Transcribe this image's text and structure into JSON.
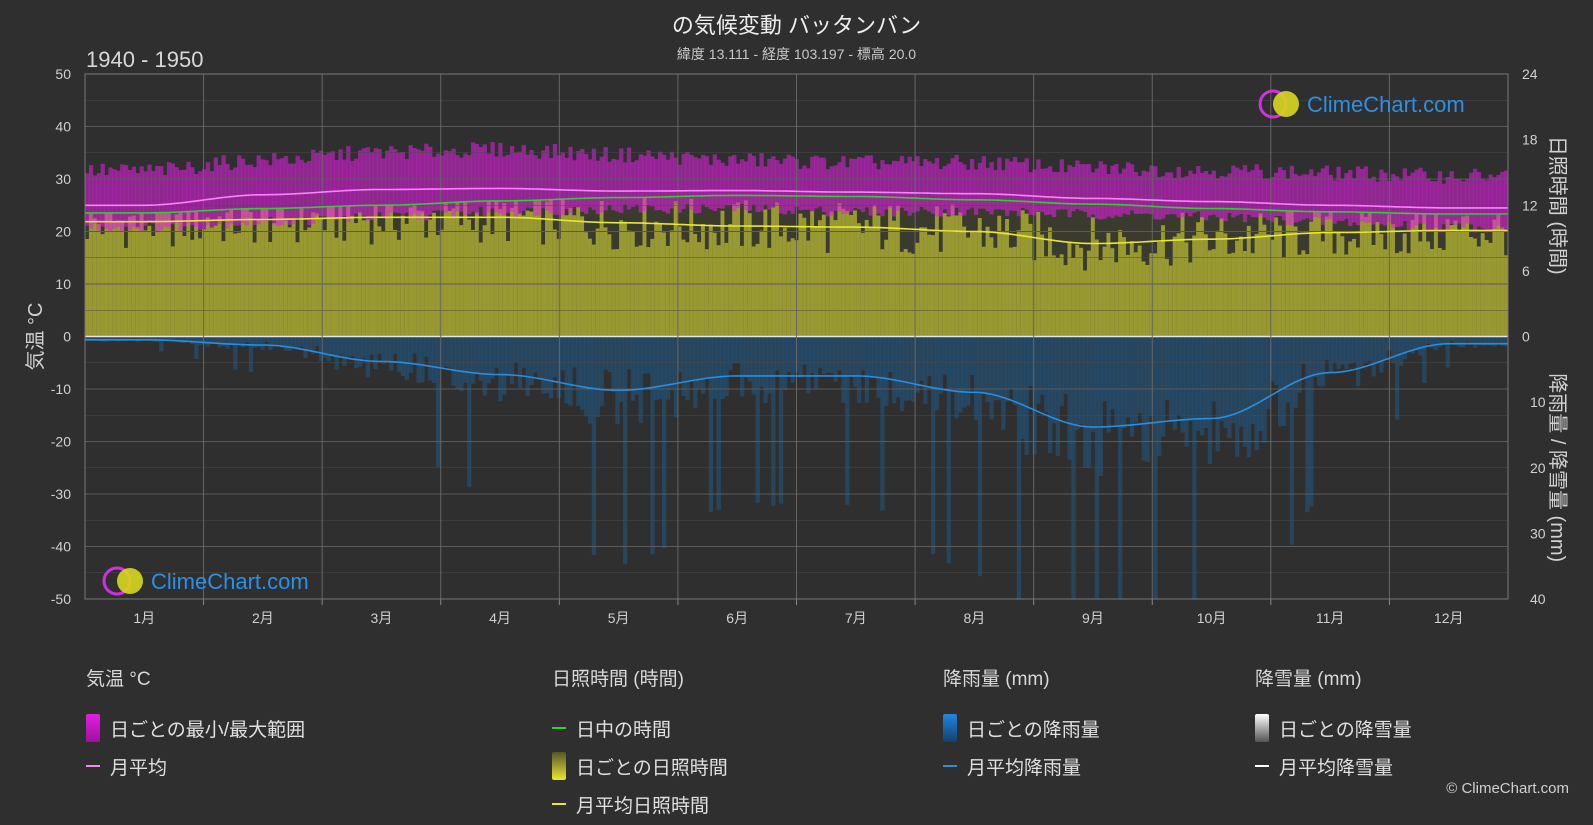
{
  "header": {
    "title": "の気候変動 バッタンバン",
    "subtitle": "緯度 13.111 - 経度 103.197 - 標高 20.0",
    "period": "1940 - 1950"
  },
  "watermark": {
    "brand": "ClimeChart.com"
  },
  "copyright": "© ClimeChart.com",
  "colors": {
    "temp_range": "#e020e0",
    "temp_mean": "#ff80ff",
    "daylight": "#33cc33",
    "sunshine_fill": "#aaaa33",
    "sunshine_mean": "#e8e830",
    "rain_bar": "#1a6fb5",
    "rain_mean": "#2a8ee0",
    "snow_mean": "#ffffff"
  },
  "chart_data": {
    "type": "line",
    "categories": [
      "1月",
      "2月",
      "3月",
      "4月",
      "5月",
      "6月",
      "7月",
      "8月",
      "9月",
      "10月",
      "11月",
      "12月"
    ],
    "left_axis": {
      "label": "気温 °C",
      "ylim": [
        -50,
        50
      ],
      "ticks": [
        "50",
        "40",
        "30",
        "20",
        "10",
        "0",
        "-10",
        "-20",
        "-30",
        "-40",
        "-50"
      ]
    },
    "right_axis_upper": {
      "label": "日照時間 (時間)",
      "ylim": [
        0,
        24
      ],
      "ticks": [
        "24",
        "18",
        "12",
        "6",
        "0"
      ]
    },
    "right_axis_lower": {
      "label": "降雨量 / 降雪量 (mm)",
      "ylim": [
        0,
        40
      ],
      "ticks": [
        "0",
        "10",
        "20",
        "30",
        "40"
      ]
    },
    "grid": true,
    "series": [
      {
        "name": "日中の時間",
        "axis": "sunshine",
        "values": [
          11.3,
          11.7,
          12.0,
          12.4,
          12.7,
          12.9,
          12.8,
          12.5,
          12.1,
          11.7,
          11.4,
          11.2
        ]
      },
      {
        "name": "月平均",
        "axis": "temperature",
        "values": [
          25.0,
          27.0,
          28.0,
          28.2,
          27.7,
          27.8,
          27.5,
          27.2,
          26.3,
          25.7,
          25.0,
          24.5
        ]
      },
      {
        "name": "月平均日照時間",
        "axis": "sunshine",
        "values": [
          10.5,
          10.7,
          10.9,
          10.9,
          10.4,
          10.1,
          10.0,
          9.6,
          8.5,
          8.9,
          9.5,
          9.7
        ]
      },
      {
        "name": "月平均降雨量",
        "axis": "precipitation",
        "values": [
          0.5,
          1.3,
          3.8,
          5.8,
          8.2,
          6.0,
          6.0,
          8.5,
          13.8,
          12.5,
          5.5,
          1.1
        ]
      },
      {
        "name": "日ごとの最小/最大範囲",
        "axis": "temperature",
        "min": [
          21,
          22,
          23,
          24,
          24.5,
          24.5,
          24,
          24,
          23.5,
          23,
          22,
          21
        ],
        "max": [
          31,
          33,
          34.5,
          35,
          34,
          33,
          32.5,
          32.5,
          31.5,
          31,
          30.5,
          30
        ]
      }
    ]
  },
  "legend": {
    "groups": [
      {
        "header": "気温 °C",
        "items": [
          {
            "label": "日ごとの最小/最大範囲",
            "kind": "box",
            "color": "#e020e0"
          },
          {
            "label": "月平均",
            "kind": "line",
            "color": "#ff80ff"
          }
        ]
      },
      {
        "header": "日照時間 (時間)",
        "items": [
          {
            "label": "日中の時間",
            "kind": "line",
            "color": "#33cc33"
          },
          {
            "label": "日ごとの日照時間",
            "kind": "box",
            "color": "#c8c830"
          },
          {
            "label": "月平均日照時間",
            "kind": "line",
            "color": "#e8e830"
          }
        ]
      },
      {
        "header": "降雨量 (mm)",
        "items": [
          {
            "label": "日ごとの降雨量",
            "kind": "box",
            "color": "#1a6fb5"
          },
          {
            "label": "月平均降雨量",
            "kind": "line",
            "color": "#2a8ee0"
          }
        ]
      },
      {
        "header": "降雪量 (mm)",
        "items": [
          {
            "label": "日ごとの降雪量",
            "kind": "box",
            "color": "#e8e8e8"
          },
          {
            "label": "月平均降雪量",
            "kind": "line",
            "color": "#ffffff"
          }
        ]
      }
    ]
  }
}
